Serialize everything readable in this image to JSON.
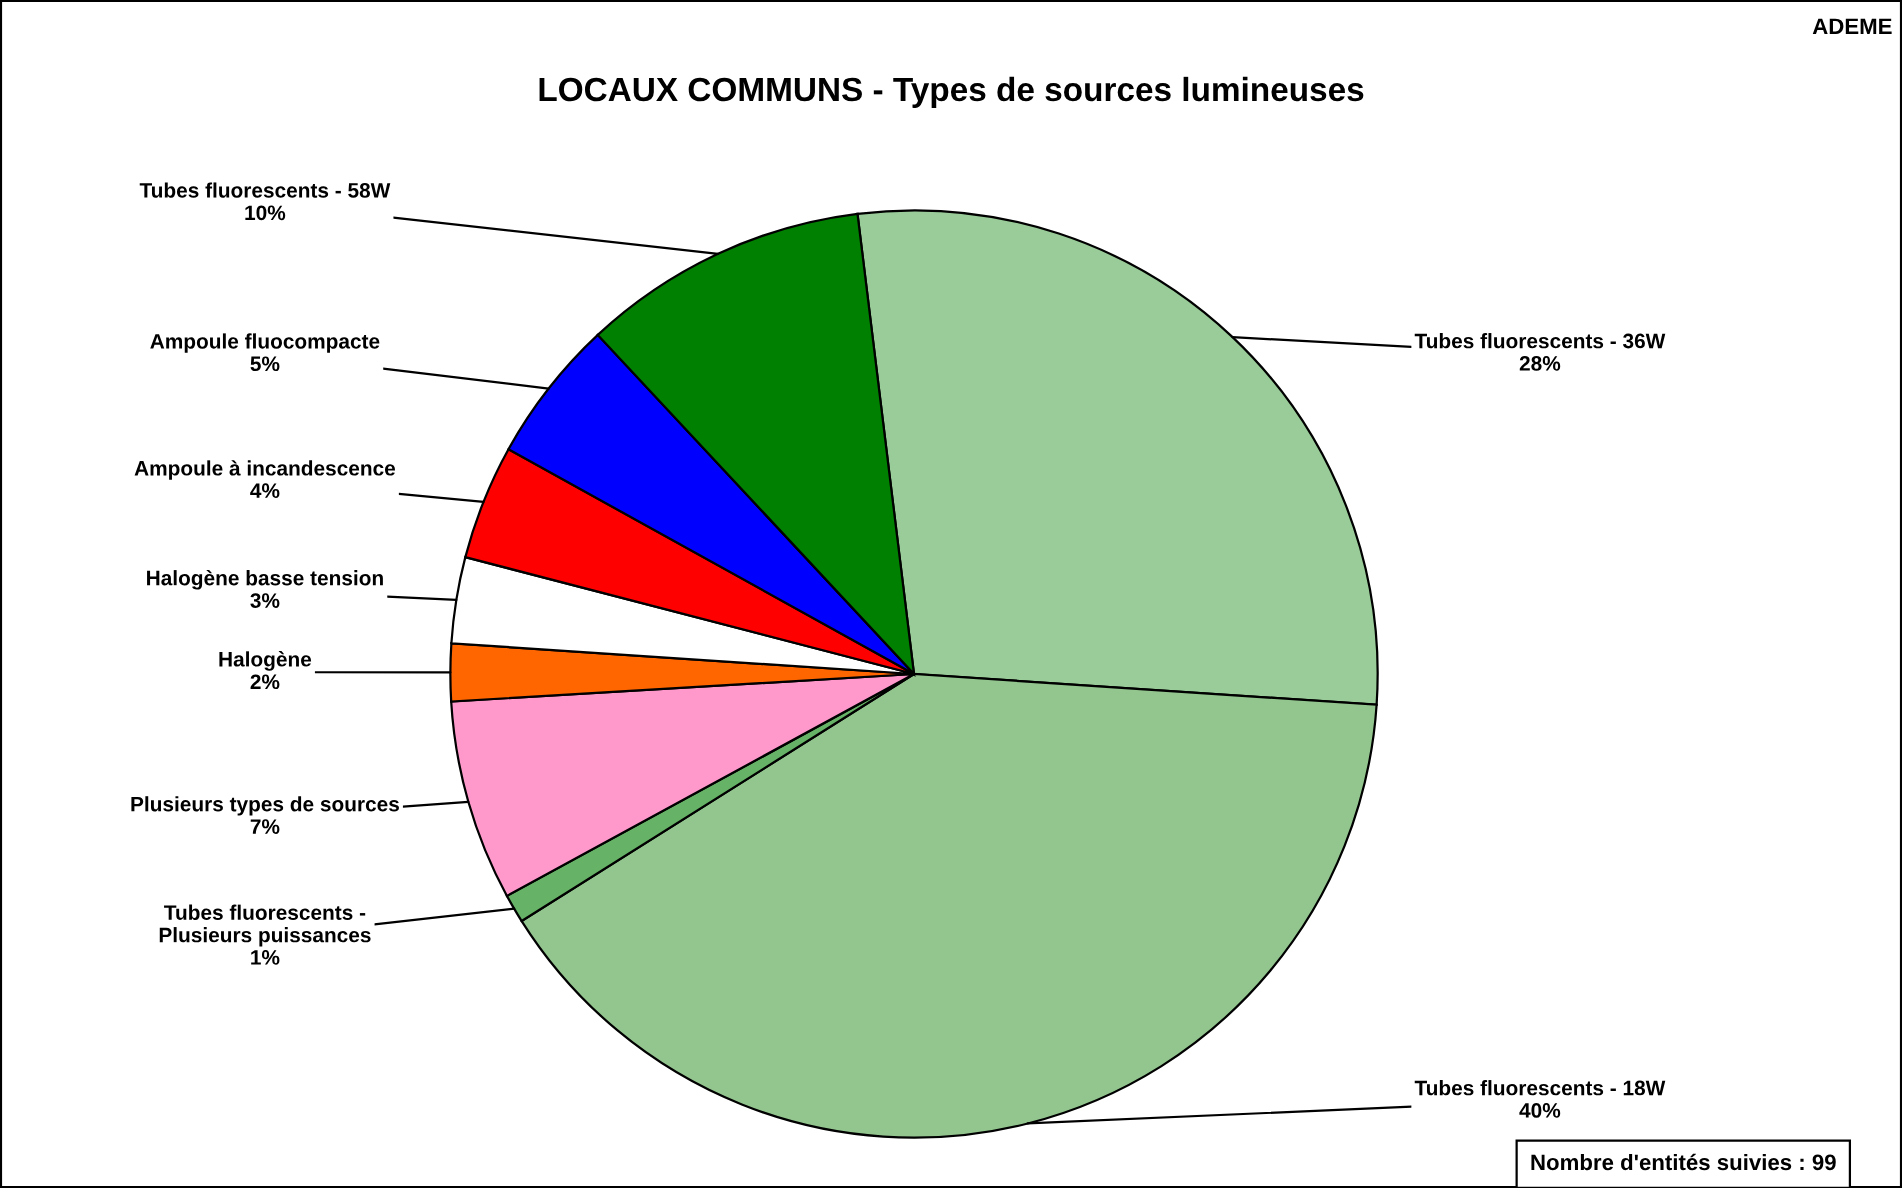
{
  "chart_data": {
    "type": "pie",
    "title": "LOCAUX COMMUNS - Types de sources lumineuses",
    "categories": [
      "Tubes fluorescents - 36W",
      "Tubes fluorescents - 18W",
      "Tubes fluorescents -\nPlusieurs puissances",
      "Plusieurs types de sources",
      "Halogène",
      "Halogène basse tension",
      "Ampoule à incandescence",
      "Ampoule fluocompacte",
      "Tubes fluorescents - 58W"
    ],
    "values": [
      28,
      40,
      1,
      7,
      2,
      3,
      4,
      5,
      10
    ],
    "value_labels": [
      "28%",
      "40%",
      "1%",
      "7%",
      "2%",
      "3%",
      "4%",
      "5%",
      "10%"
    ],
    "colors": [
      "#99cc99",
      "#93c68f",
      "#66b266",
      "#ff99cc",
      "#ff6600",
      "#ffffff",
      "#ff0000",
      "#0000ff",
      "#008000"
    ],
    "annotations": [
      "ADEME",
      "Nombre d'entités suivies : 99"
    ],
    "legend": false
  }
}
